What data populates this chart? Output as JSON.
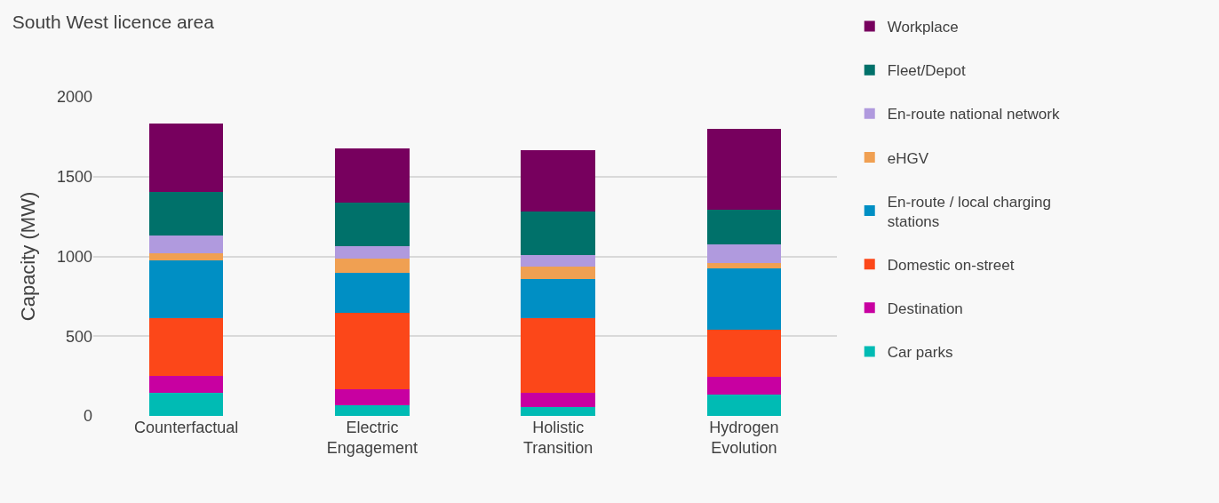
{
  "chart_data": {
    "type": "bar",
    "stacked": true,
    "title": "South West licence area",
    "ylabel": "Capacity (MW)",
    "categories": [
      "Counterfactual",
      "Electric Engagement",
      "Holistic Transition",
      "Hydrogen Evolution"
    ],
    "series": [
      {
        "name": "Car parks",
        "color": "#00bbb4",
        "values": [
          145,
          68,
          55,
          134
        ]
      },
      {
        "name": "Destination",
        "color": "#c800a1",
        "values": [
          107,
          99,
          88,
          109
        ]
      },
      {
        "name": "Domestic on-street",
        "color": "#fc4719",
        "values": [
          363,
          481,
          472,
          295
        ]
      },
      {
        "name": "En-route / local charging stations",
        "color": "#008fc4",
        "values": [
          362,
          251,
          242,
          385
        ]
      },
      {
        "name": "eHGV",
        "color": "#f0a052",
        "values": [
          43,
          88,
          77,
          33
        ]
      },
      {
        "name": "En-route national network",
        "color": "#b09ade",
        "values": [
          110,
          77,
          75,
          121
        ]
      },
      {
        "name": "Fleet/Depot",
        "color": "#00716a",
        "values": [
          274,
          274,
          274,
          218
        ]
      },
      {
        "name": "Workplace",
        "color": "#77005e",
        "values": [
          428,
          341,
          385,
          505
        ]
      }
    ],
    "ylim": [
      0,
      2000
    ],
    "yticks": [
      0,
      500,
      1000,
      1500,
      2000
    ],
    "grid": "y",
    "legend": "right"
  }
}
